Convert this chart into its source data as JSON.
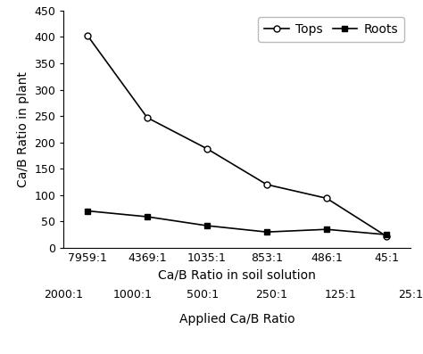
{
  "x_labels_soil": [
    "7959:1",
    "4369:1",
    "1035:1",
    "853:1",
    "486:1",
    "45:1"
  ],
  "x_labels_applied": [
    "2000:1",
    "1000:1",
    "500:1",
    "250:1",
    "125:1",
    "25:1"
  ],
  "tops_values": [
    403,
    247,
    188,
    120,
    94,
    22
  ],
  "roots_values": [
    70,
    59,
    42,
    30,
    35,
    25
  ],
  "ylabel": "Ca/B Ratio in plant",
  "xlabel_soil": "Ca/B Ratio in soil solution",
  "xlabel_applied": "Applied Ca/B Ratio",
  "legend_tops": "Tops",
  "legend_roots": "Roots",
  "ylim": [
    0,
    450
  ],
  "yticks": [
    0,
    50,
    100,
    150,
    200,
    250,
    300,
    350,
    400,
    450
  ],
  "line_color": "#000000",
  "tops_marker": "o",
  "roots_marker": "s",
  "tops_marker_fill": "white",
  "roots_marker_fill": "black",
  "background_color": "#ffffff",
  "fontsize_labels": 10,
  "fontsize_ticks": 9,
  "fontsize_legend": 10
}
